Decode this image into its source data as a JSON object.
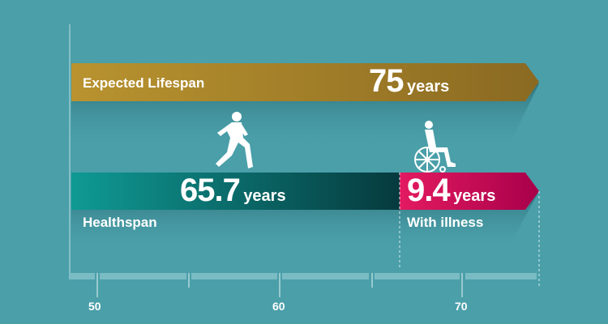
{
  "lifespan": {
    "label": "Expected Lifespan",
    "value": "75",
    "unit": "years",
    "color_start": "#b9932f",
    "color_end": "#8a6a22"
  },
  "healthspan": {
    "label": "Healthspan",
    "value": "65.7",
    "unit": "years",
    "color_start": "#0f9a94",
    "color_end": "#063a3e",
    "icon": "running-person-icon"
  },
  "illness": {
    "label": "With illness",
    "value": "9.4",
    "unit": "years",
    "color_start": "#e31a60",
    "color_end": "#a8004a",
    "icon": "wheelchair-icon"
  },
  "axis": {
    "ticks": [
      "50",
      "60",
      "70"
    ]
  },
  "background": "#4a9fa9"
}
